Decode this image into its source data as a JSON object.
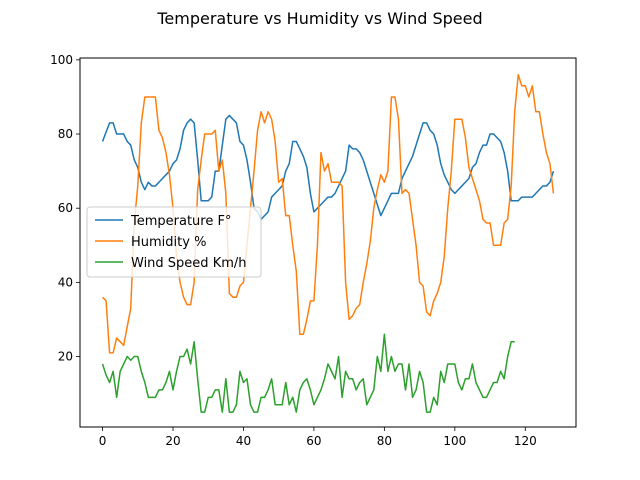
{
  "chart_data": {
    "type": "line",
    "title": "Temperature vs Humidity vs Wind Speed",
    "xlabel": "",
    "ylabel": "",
    "xlim": [
      -6.4,
      134.4
    ],
    "ylim": [
      1.0,
      100.5
    ],
    "xticks": [
      0,
      20,
      40,
      60,
      80,
      100,
      120
    ],
    "yticks": [
      20,
      40,
      60,
      80,
      100
    ],
    "grid": false,
    "legend": "center-left",
    "series": [
      {
        "name": "Temperature F°",
        "color": "#1f77b4",
        "x": [
          0,
          2,
          3,
          4,
          6,
          7,
          8,
          9,
          10,
          11,
          12,
          13,
          14,
          15,
          16,
          17,
          18,
          19,
          20,
          21,
          22,
          23,
          24,
          25,
          26,
          27,
          28,
          29,
          30,
          31,
          32,
          33,
          34,
          35,
          36,
          37,
          38,
          39,
          40,
          41,
          42,
          43,
          44,
          45,
          46,
          47,
          48,
          49,
          50,
          51,
          52,
          53,
          54,
          55,
          56,
          57,
          58,
          59,
          60,
          61,
          62,
          63,
          64,
          65,
          66,
          67,
          68,
          69,
          70,
          71,
          72,
          73,
          74,
          75,
          76,
          77,
          78,
          79,
          80,
          81,
          82,
          83,
          84,
          85,
          86,
          87,
          88,
          89,
          90,
          91,
          92,
          93,
          94,
          95,
          96,
          97,
          98,
          99,
          100,
          101,
          102,
          103,
          104,
          105,
          106,
          107,
          108,
          109,
          110,
          111,
          112,
          113,
          114,
          115,
          116,
          117,
          118,
          119,
          120,
          121,
          122,
          123,
          124,
          125,
          126,
          127,
          128
        ],
        "values": [
          78,
          83,
          83,
          80,
          80,
          78,
          77,
          73,
          71,
          67,
          65,
          67,
          66,
          66,
          67,
          68,
          69,
          70,
          72,
          73,
          76,
          81,
          83,
          84,
          83,
          73,
          62,
          62,
          62,
          63,
          70,
          70,
          77,
          84,
          85,
          84,
          83,
          78,
          77,
          73,
          67,
          60,
          59,
          57,
          58,
          59,
          63,
          64,
          65,
          66,
          70,
          72,
          78,
          78,
          76,
          74,
          71,
          64,
          59,
          60,
          61,
          62,
          63,
          63,
          64,
          66,
          68,
          70,
          77,
          76,
          76,
          75,
          73,
          70,
          67,
          64,
          61,
          58,
          60,
          62,
          64,
          64,
          64,
          68,
          70,
          72,
          74,
          77,
          80,
          83,
          83,
          81,
          80,
          77,
          72,
          69,
          67,
          65,
          64,
          65,
          66,
          67,
          68,
          71,
          72,
          75,
          77,
          77,
          80,
          80,
          79,
          78,
          75,
          70,
          62,
          62,
          62,
          63,
          63,
          63,
          63,
          64,
          65,
          66,
          66,
          67,
          70
        ]
      },
      {
        "name": "Humidity %",
        "color": "#ff7f0e",
        "x": [
          0,
          1,
          2,
          3,
          4,
          5,
          6,
          7,
          8,
          9,
          10,
          11,
          12,
          13,
          14,
          15,
          16,
          17,
          18,
          19,
          20,
          21,
          22,
          23,
          24,
          25,
          26,
          27,
          28,
          29,
          30,
          31,
          32,
          33,
          34,
          35,
          36,
          37,
          38,
          39,
          40,
          41,
          42,
          43,
          44,
          45,
          46,
          47,
          48,
          49,
          50,
          51,
          52,
          53,
          54,
          55,
          56,
          57,
          58,
          59,
          60,
          61,
          62,
          63,
          64,
          65,
          66,
          67,
          68,
          69,
          70,
          71,
          72,
          73,
          74,
          75,
          76,
          77,
          78,
          79,
          80,
          81,
          82,
          83,
          84,
          85,
          86,
          87,
          88,
          89,
          90,
          91,
          92,
          93,
          94,
          95,
          96,
          97,
          98,
          99,
          100,
          101,
          102,
          103,
          104,
          105,
          106,
          107,
          108,
          109,
          110,
          111,
          112,
          113,
          114,
          115,
          116,
          117,
          118,
          119,
          120,
          121,
          122,
          123,
          124,
          125,
          126,
          127,
          128
        ],
        "values": [
          36,
          35,
          21,
          21,
          25,
          24,
          23,
          28,
          33,
          56,
          66,
          83,
          90,
          90,
          90,
          90,
          81,
          79,
          75,
          69,
          60,
          47,
          40,
          36,
          34,
          34,
          40,
          65,
          73,
          80,
          80,
          80,
          81,
          70,
          73,
          64,
          37,
          36,
          36,
          39,
          40,
          50,
          60,
          70,
          81,
          86,
          83,
          86,
          84,
          78,
          67,
          68,
          58,
          58,
          50,
          43,
          26,
          26,
          30,
          35,
          35,
          50,
          75,
          70,
          72,
          67,
          67,
          67,
          66,
          40,
          30,
          31,
          33,
          34,
          40,
          45,
          51,
          60,
          65,
          69,
          67,
          70,
          90,
          90,
          84,
          64,
          65,
          64,
          57,
          50,
          40,
          39,
          32,
          31,
          35,
          37,
          40,
          47,
          60,
          70,
          84,
          84,
          84,
          79,
          71,
          68,
          65,
          62,
          57,
          56,
          56,
          50,
          50,
          50,
          56,
          57,
          66,
          86,
          96,
          93,
          93,
          90,
          93,
          86,
          86,
          80,
          75,
          72,
          64
        ]
      },
      {
        "name": "Wind Speed Km/h",
        "color": "#2ca02c",
        "x": [
          0,
          1,
          2,
          3,
          4,
          5,
          6,
          7,
          8,
          9,
          10,
          11,
          12,
          13,
          14,
          15,
          16,
          17,
          18,
          19,
          20,
          21,
          22,
          23,
          24,
          25,
          26,
          27,
          28,
          29,
          30,
          31,
          32,
          33,
          34,
          35,
          36,
          37,
          38,
          39,
          40,
          41,
          42,
          43,
          44,
          45,
          46,
          47,
          48,
          49,
          50,
          51,
          52,
          53,
          54,
          55,
          56,
          57,
          58,
          59,
          60,
          61,
          62,
          63,
          64,
          65,
          66,
          67,
          68,
          69,
          70,
          71,
          72,
          73,
          74,
          75,
          76,
          77,
          78,
          79,
          80,
          81,
          82,
          83,
          84,
          85,
          86,
          87,
          88,
          89,
          90,
          91,
          92,
          93,
          94,
          95,
          96,
          97,
          98,
          99,
          100,
          101,
          102,
          103,
          104,
          105,
          106,
          107,
          108,
          109,
          110,
          111,
          112,
          113,
          114,
          115,
          116,
          117
        ],
        "values": [
          18,
          15,
          13,
          16,
          9,
          16,
          18,
          20,
          19,
          20,
          20,
          16,
          13,
          9,
          9,
          9,
          11,
          11,
          13,
          16,
          11,
          16,
          20,
          20,
          22,
          18,
          24,
          14,
          5,
          5,
          9,
          9,
          11,
          11,
          5,
          14,
          5,
          5,
          7,
          16,
          13,
          14,
          7,
          5,
          5,
          9,
          9,
          11,
          14,
          7,
          7,
          7,
          13,
          7,
          9,
          5,
          11,
          13,
          14,
          11,
          7,
          9,
          11,
          14,
          18,
          16,
          14,
          20,
          9,
          16,
          14,
          14,
          11,
          13,
          14,
          7,
          9,
          11,
          20,
          16,
          26,
          16,
          20,
          16,
          18,
          18,
          11,
          18,
          9,
          11,
          16,
          13,
          5,
          5,
          9,
          7,
          16,
          13,
          18,
          18,
          18,
          13,
          11,
          14,
          14,
          18,
          13,
          11,
          9,
          9,
          11,
          13,
          13,
          16,
          14,
          20,
          24,
          24
        ]
      }
    ]
  }
}
